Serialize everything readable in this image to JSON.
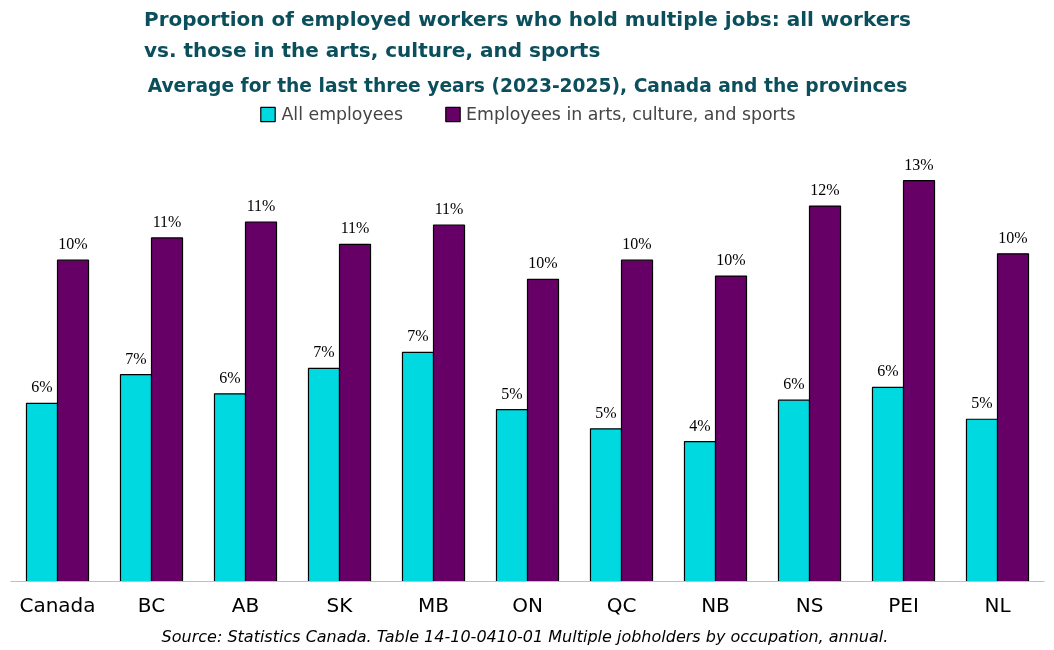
{
  "chart_data": {
    "type": "bar",
    "title": "Proportion of employed workers who hold multiple jobs: all workers\nvs. those in the arts, culture, and sports",
    "subtitle": "Average for the last three years (2023-2025), Canada and the provinces",
    "categories": [
      "Canada",
      "BC",
      "AB",
      "SK",
      "MB",
      "ON",
      "QC",
      "NB",
      "NS",
      "PEI",
      "NL"
    ],
    "series": [
      {
        "name": "All employees",
        "color": "#00d9e0",
        "values": [
          5.6,
          6.5,
          5.9,
          6.7,
          7.2,
          5.4,
          4.8,
          4.4,
          5.7,
          6.1,
          5.1
        ],
        "value_labels": [
          "6%",
          "7%",
          "6%",
          "7%",
          "7%",
          "5%",
          "5%",
          "4%",
          "6%",
          "6%",
          "5%"
        ]
      },
      {
        "name": "Employees in arts, culture, and sports",
        "color": "#660066",
        "values": [
          10.1,
          10.8,
          11.3,
          10.6,
          11.2,
          9.5,
          10.1,
          9.6,
          11.8,
          12.6,
          10.3
        ],
        "value_labels": [
          "10%",
          "11%",
          "11%",
          "11%",
          "11%",
          "10%",
          "10%",
          "10%",
          "12%",
          "13%",
          "10%"
        ]
      }
    ],
    "legend": "top",
    "annotations": [
      "Source: Statistics Canada. Table 14-10-0410-01  Multiple jobholders by occupation, annual."
    ]
  }
}
